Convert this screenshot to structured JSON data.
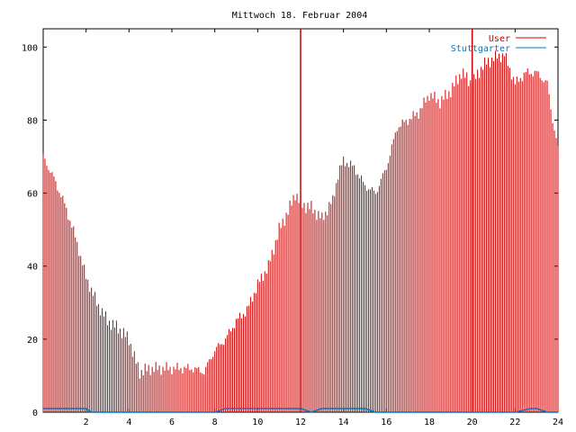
{
  "chart_data": {
    "type": "bar",
    "title": "Mittwoch 18. Februar 2004",
    "xlabel": "",
    "ylabel": "",
    "xlim": [
      0,
      24
    ],
    "ylim": [
      0,
      105
    ],
    "grid": false,
    "legend_position": "top-right",
    "x_ticks": [
      "2",
      "4",
      "6",
      "8",
      "10",
      "12",
      "14",
      "16",
      "18",
      "20",
      "22",
      "24"
    ],
    "y_ticks": [
      "0",
      "20",
      "40",
      "60",
      "80",
      "100"
    ],
    "series": [
      {
        "name": "User",
        "color": "#cc0000",
        "hours": [
          0,
          0.5,
          1,
          1.5,
          2,
          2.5,
          3,
          3.5,
          4,
          4.25,
          4.5,
          5,
          5.5,
          6,
          6.5,
          7,
          7.5,
          8,
          8.5,
          9,
          9.5,
          10,
          10.5,
          11,
          11.5,
          11.75,
          12,
          12.5,
          13,
          13.5,
          13.75,
          14,
          14.5,
          15,
          15.5,
          16,
          16.5,
          17,
          17.5,
          18,
          18.5,
          19,
          19.5,
          20,
          20.5,
          21,
          21.5,
          22,
          22.5,
          23,
          23.5,
          23.75,
          24
        ],
        "values": [
          70,
          64,
          57,
          48,
          37,
          30,
          25,
          23,
          20,
          15,
          11,
          12,
          12,
          12,
          12,
          12,
          11,
          17,
          20,
          25,
          28,
          35,
          40,
          50,
          56,
          60,
          57,
          56,
          53,
          58,
          65,
          69,
          67,
          62,
          60,
          67,
          78,
          80,
          82,
          87,
          85,
          88,
          93,
          90,
          95,
          97,
          98,
          90,
          93,
          93,
          90,
          80,
          72
        ]
      },
      {
        "name": "Stuttgarter",
        "color": "#0077cc",
        "hours": [
          0,
          0.5,
          1,
          1.5,
          2,
          2.25,
          2.5,
          4,
          6,
          8,
          8.5,
          9,
          10,
          11,
          11.5,
          12,
          12.5,
          13,
          13.5,
          14,
          14.5,
          15,
          15.5,
          16,
          18,
          20,
          22,
          22.75,
          23,
          23.5,
          24
        ],
        "values": [
          1,
          1,
          1,
          1,
          1,
          0,
          0,
          0,
          0,
          0,
          1,
          1,
          1,
          1,
          1,
          1,
          0,
          1,
          1,
          1,
          1,
          1,
          0,
          0,
          0,
          0,
          0,
          1,
          1,
          0,
          0
        ]
      }
    ],
    "red_spikes_hours": [
      12,
      20
    ]
  }
}
